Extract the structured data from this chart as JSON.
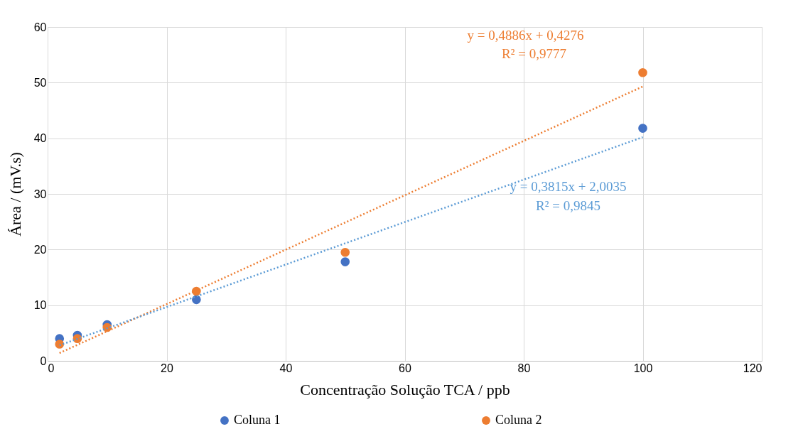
{
  "chart_data": {
    "type": "scatter",
    "xlabel": "Concentração Solução TCA / ppb",
    "ylabel": "Área / (mV.s)",
    "xlim": [
      0,
      120
    ],
    "xticks": [
      0,
      20,
      40,
      60,
      80,
      100,
      120
    ],
    "ylim": [
      0,
      60
    ],
    "yticks": [
      0,
      10,
      20,
      30,
      40,
      50,
      60
    ],
    "grid": true,
    "legend": "bottom",
    "marker": "circle",
    "series": [
      {
        "name": "Coluna 1",
        "color": "#4472c4",
        "x": [
          2,
          5,
          10,
          25,
          50,
          100
        ],
        "values": [
          4.0,
          4.6,
          6.5,
          11.0,
          17.8,
          41.8
        ]
      },
      {
        "name": "Coluna 2",
        "color": "#ed7d31",
        "x": [
          2,
          5,
          10,
          25,
          50,
          100
        ],
        "values": [
          3.0,
          4.0,
          6.0,
          12.5,
          19.5,
          51.8
        ]
      },
      {
        "type": "line",
        "color": "#ed7d31",
        "line_style": "dotted",
        "marker": "none",
        "x": [
          2,
          100
        ],
        "values": [
          1.4,
          49.3
        ]
      },
      {
        "type": "line",
        "color": "#5b9bd5",
        "line_style": "dotted",
        "marker": "none",
        "x": [
          2,
          100
        ],
        "values": [
          2.8,
          40.2
        ]
      }
    ],
    "annotations": [
      "y = 0,4886x + 0,4276",
      "R² = 0,9777",
      "y = 0,3815x + 2,0035",
      "R² = 0,9845"
    ]
  }
}
